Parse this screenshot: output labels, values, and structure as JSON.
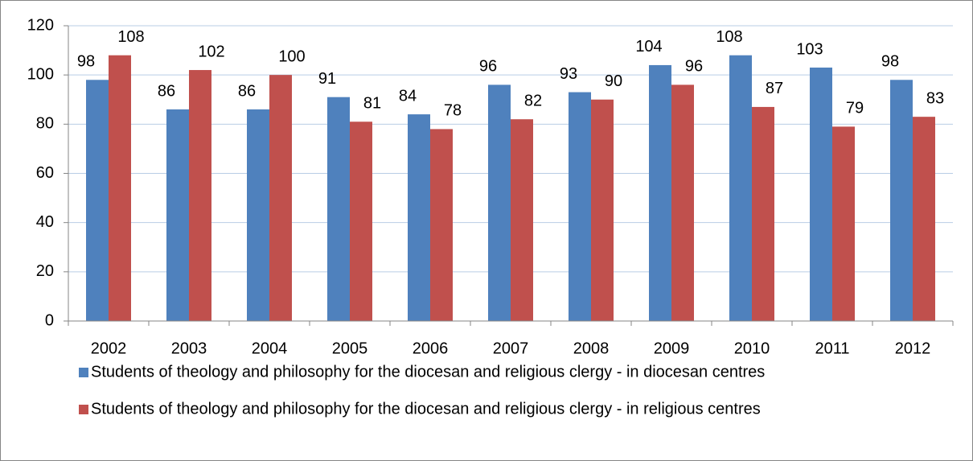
{
  "chart_data": {
    "type": "bar",
    "categories": [
      "2002",
      "2003",
      "2004",
      "2005",
      "2006",
      "2007",
      "2008",
      "2009",
      "2010",
      "2011",
      "2012"
    ],
    "series": [
      {
        "name": "Students of theology and philosophy for the diocesan and religious clergy - in diocesan centres",
        "color": "#4f81bd",
        "values": [
          98,
          86,
          86,
          91,
          84,
          96,
          93,
          104,
          108,
          103,
          98
        ]
      },
      {
        "name": "Students of theology and philosophy for the diocesan and religious clergy - in religious centres",
        "color": "#c0504d",
        "values": [
          108,
          102,
          100,
          81,
          78,
          82,
          90,
          96,
          87,
          79,
          83
        ]
      }
    ],
    "ylim": [
      0,
      120
    ],
    "yticks": [
      0,
      20,
      40,
      60,
      80,
      100,
      120
    ],
    "grid": true,
    "legend": "bottom"
  }
}
